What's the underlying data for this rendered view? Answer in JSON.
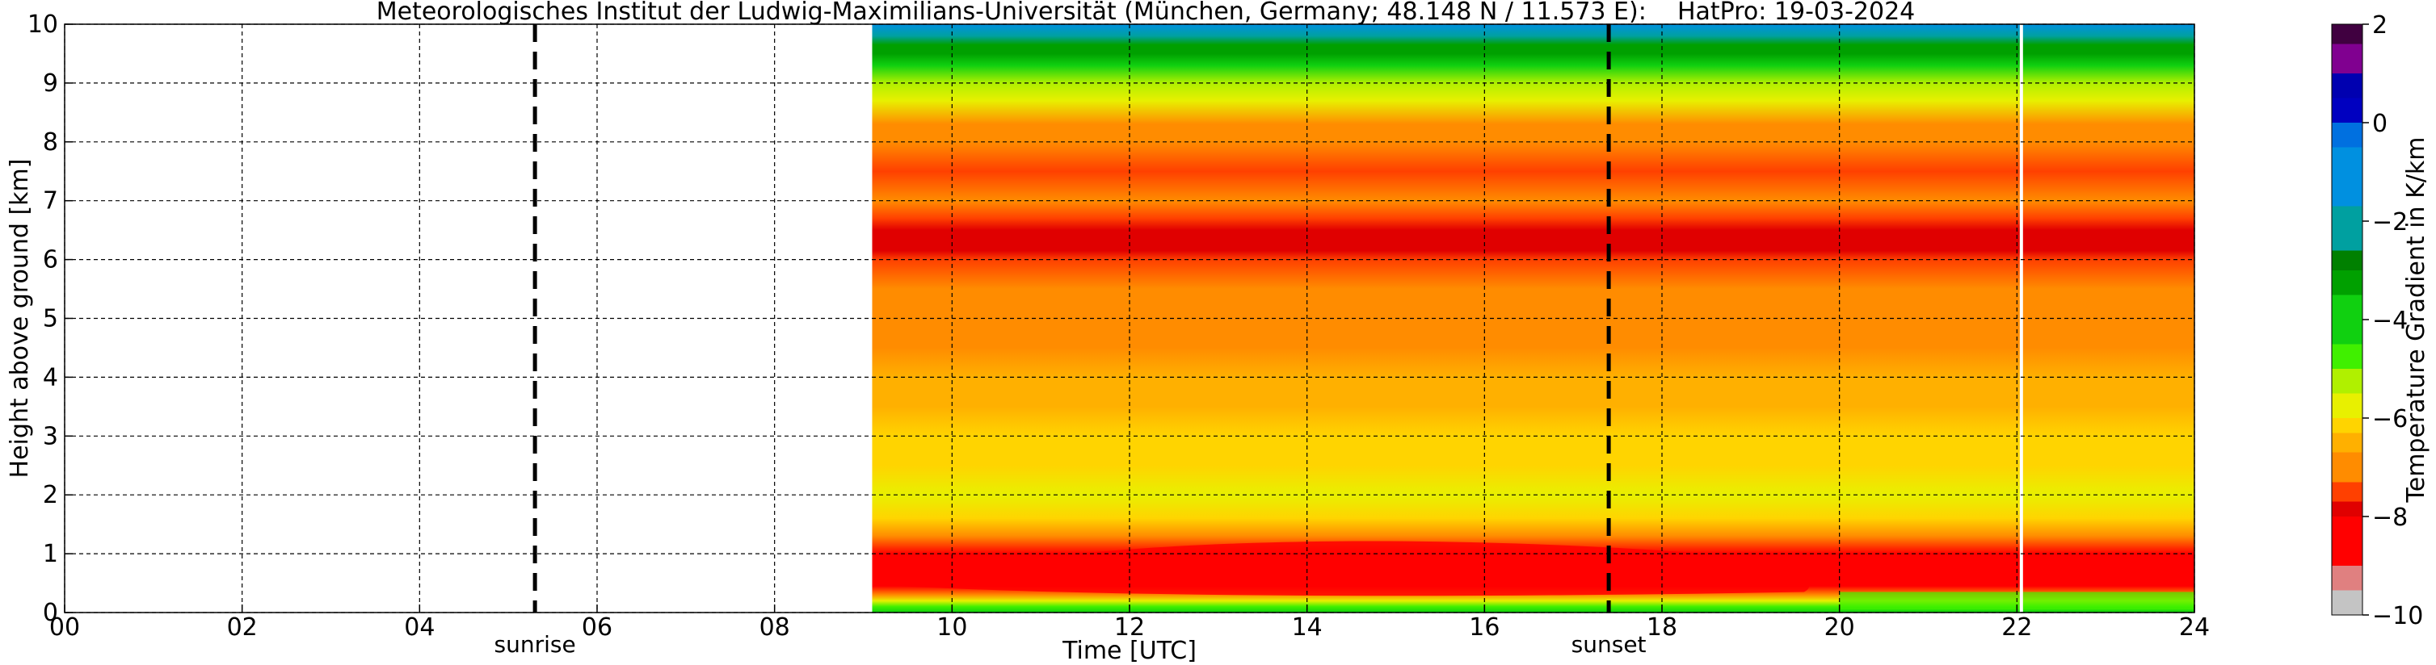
{
  "chart_data": {
    "type": "heatmap",
    "title": "Meteorologisches Institut der Ludwig-Maximilians-Universität (München, Germany; 48.148 N / 11.573 E):    HatPro: 19-03-2024",
    "xlabel": "Time [UTC]",
    "ylabel": "Height above ground [km]",
    "xlim": [
      0,
      24
    ],
    "ylim": [
      0,
      10
    ],
    "x_ticks": [
      "00",
      "02",
      "04",
      "06",
      "08",
      "10",
      "12",
      "14",
      "16",
      "18",
      "20",
      "22",
      "24"
    ],
    "y_ticks": [
      "0",
      "1",
      "2",
      "3",
      "4",
      "5",
      "6",
      "7",
      "8",
      "9",
      "10"
    ],
    "grid": true,
    "data_start_hour": 9.1,
    "data_end_hour": 24,
    "gap_line_hour": 22.05,
    "annotations": [
      {
        "label": "sunrise",
        "hour": 5.3
      },
      {
        "label": "sunset",
        "hour": 17.4
      }
    ],
    "colorbar": {
      "label": "Temperature Gradient in K/km",
      "range": [
        -10,
        2
      ],
      "ticks": [
        "2",
        "0",
        "−2",
        "−4",
        "−6",
        "−8",
        "−10"
      ],
      "stops": [
        {
          "v": -10.0,
          "c": "#c4c4c4"
        },
        {
          "v": -9.5,
          "c": "#e08080"
        },
        {
          "v": -9.0,
          "c": "#ff0000"
        },
        {
          "v": -8.0,
          "c": "#e00000"
        },
        {
          "v": -7.7,
          "c": "#ff4000"
        },
        {
          "v": -7.3,
          "c": "#ff8c00"
        },
        {
          "v": -6.7,
          "c": "#ffb000"
        },
        {
          "v": -6.3,
          "c": "#ffd400"
        },
        {
          "v": -6.0,
          "c": "#e8f000"
        },
        {
          "v": -5.5,
          "c": "#b0f000"
        },
        {
          "v": -5.0,
          "c": "#40f000"
        },
        {
          "v": -4.5,
          "c": "#10d010"
        },
        {
          "v": -3.5,
          "c": "#00a000"
        },
        {
          "v": -3.0,
          "c": "#008000"
        },
        {
          "v": -2.6,
          "c": "#00a0a0"
        },
        {
          "v": -1.7,
          "c": "#0090e0"
        },
        {
          "v": -0.5,
          "c": "#0070e0"
        },
        {
          "v": 0.0,
          "c": "#0000c0"
        },
        {
          "v": 0.5,
          "c": "#0000b0"
        },
        {
          "v": 1.0,
          "c": "#800090"
        },
        {
          "v": 1.6,
          "c": "#400040"
        },
        {
          "v": 2.0,
          "c": "#000000"
        }
      ]
    },
    "profile": [
      {
        "h": 0.0,
        "v": -4.2
      },
      {
        "h": 0.1,
        "v": -4.8
      },
      {
        "h": 0.2,
        "v": -5.8
      },
      {
        "h": 0.3,
        "v": -7.2
      },
      {
        "h": 0.45,
        "v": -8.6
      },
      {
        "h": 0.7,
        "v": -8.8
      },
      {
        "h": 1.0,
        "v": -8.2
      },
      {
        "h": 1.3,
        "v": -7.0
      },
      {
        "h": 1.6,
        "v": -6.3
      },
      {
        "h": 2.0,
        "v": -6.0
      },
      {
        "h": 2.5,
        "v": -6.1
      },
      {
        "h": 3.0,
        "v": -6.2
      },
      {
        "h": 3.5,
        "v": -6.4
      },
      {
        "h": 4.0,
        "v": -6.6
      },
      {
        "h": 4.5,
        "v": -6.8
      },
      {
        "h": 5.0,
        "v": -7.0
      },
      {
        "h": 5.5,
        "v": -7.3
      },
      {
        "h": 6.0,
        "v": -7.5
      },
      {
        "h": 6.15,
        "v": -7.8
      },
      {
        "h": 6.5,
        "v": -7.9
      },
      {
        "h": 6.7,
        "v": -7.5
      },
      {
        "h": 7.0,
        "v": -7.3
      },
      {
        "h": 7.5,
        "v": -7.4
      },
      {
        "h": 8.0,
        "v": -7.2
      },
      {
        "h": 8.3,
        "v": -6.8
      },
      {
        "h": 8.7,
        "v": -6.0
      },
      {
        "h": 9.0,
        "v": -5.2
      },
      {
        "h": 9.3,
        "v": -4.5
      },
      {
        "h": 9.5,
        "v": -3.5
      },
      {
        "h": 9.65,
        "v": -3.2
      },
      {
        "h": 9.8,
        "v": -2.0
      },
      {
        "h": 10.0,
        "v": -1.7
      }
    ]
  }
}
